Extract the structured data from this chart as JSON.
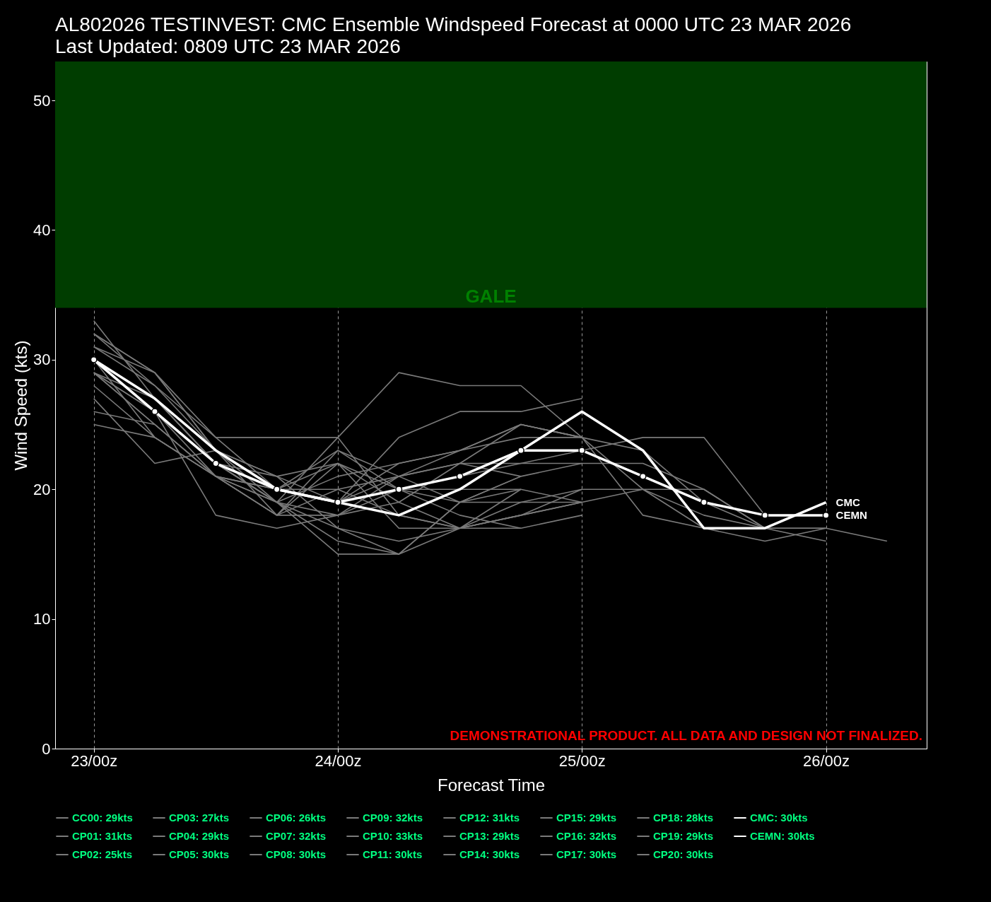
{
  "chart_data": {
    "type": "line",
    "title": "AL802026 TESTINVEST: CMC Ensemble Windspeed Forecast at 0000 UTC 23 MAR 2026",
    "subtitle": "Last Updated: 0809 UTC 23 MAR 2026",
    "xlabel": "Forecast Time",
    "ylabel": "Wind Speed (kts)",
    "x": [
      "2026-03-23T00:00",
      "2026-03-23T06:00",
      "2026-03-23T12:00",
      "2026-03-23T18:00",
      "2026-03-24T00:00",
      "2026-03-24T06:00",
      "2026-03-24T12:00",
      "2026-03-24T18:00",
      "2026-03-25T00:00",
      "2026-03-25T06:00",
      "2026-03-25T12:00",
      "2026-03-25T18:00",
      "2026-03-26T00:00",
      "2026-03-26T06:00"
    ],
    "xlim": [
      "2026-03-22T20:12",
      "2026-03-26T09:54"
    ],
    "xticks": [
      {
        "value": "2026-03-23T00:00",
        "label": "23/00z"
      },
      {
        "value": "2026-03-24T00:00",
        "label": "24/00z"
      },
      {
        "value": "2026-03-25T00:00",
        "label": "25/00z"
      },
      {
        "value": "2026-03-26T00:00",
        "label": "26/00z"
      }
    ],
    "ylim": [
      0,
      53
    ],
    "yticks": [
      0,
      10,
      20,
      30,
      40,
      50
    ],
    "grid": "x",
    "legend": "bottom",
    "line_style": "solid",
    "bands": [
      {
        "axis": "y",
        "from": 34,
        "to": 53,
        "label": "GALE",
        "color": "#003d00"
      }
    ],
    "annotations": [
      {
        "text": "CMC",
        "x": "2026-03-26T00:00",
        "y": 19
      },
      {
        "text": "CEMN",
        "x": "2026-03-26T00:00",
        "y": 18
      },
      "DEMONSTRATIONAL PRODUCT. ALL DATA AND DESIGN NOT FINALIZED."
    ],
    "series": [
      {
        "name": "CC00: 29kts",
        "color": "#7a7a7a",
        "values": [
          29,
          25,
          21,
          20,
          22,
          20,
          19,
          20,
          null,
          null,
          null,
          null,
          null,
          null
        ]
      },
      {
        "name": "CP01: 31kts",
        "color": "#7a7a7a",
        "values": [
          31,
          29,
          23,
          20,
          19,
          22,
          23,
          25,
          24,
          null,
          null,
          null,
          null,
          null
        ]
      },
      {
        "name": "CP02: 25kts",
        "color": "#7a7a7a",
        "values": [
          25,
          24,
          21,
          20,
          20,
          18,
          17,
          18,
          19,
          null,
          null,
          null,
          null,
          null
        ]
      },
      {
        "name": "CP03: 27kts",
        "color": "#7a7a7a",
        "values": [
          27,
          22,
          23,
          20,
          23,
          21,
          19,
          21,
          null,
          null,
          null,
          null,
          null,
          null
        ]
      },
      {
        "name": "CP04: 29kts",
        "color": "#7a7a7a",
        "values": [
          29,
          26,
          21,
          18,
          20,
          21,
          23,
          24,
          24,
          20,
          18,
          17,
          17,
          null
        ]
      },
      {
        "name": "CP05: 30kts",
        "color": "#7a7a7a",
        "values": [
          30,
          26,
          22,
          20,
          19,
          20,
          21,
          22,
          22,
          null,
          null,
          null,
          null,
          null
        ]
      },
      {
        "name": "CP06: 26kts",
        "color": "#7a7a7a",
        "values": [
          26,
          25,
          21,
          19,
          17,
          16,
          17,
          18,
          19,
          null,
          null,
          null,
          null,
          null
        ]
      },
      {
        "name": "CP07: 32kts",
        "color": "#7a7a7a",
        "values": [
          32,
          29,
          24,
          20,
          19,
          24,
          26,
          26,
          27,
          null,
          null,
          null,
          null,
          null
        ]
      },
      {
        "name": "CP08: 30kts",
        "color": "#7a7a7a",
        "values": [
          30,
          27,
          22,
          19,
          18,
          19,
          22,
          25,
          24,
          23,
          19,
          17,
          16,
          null
        ]
      },
      {
        "name": "CP09: 32kts",
        "color": "#7a7a7a",
        "values": [
          32,
          28,
          23,
          21,
          22,
          17,
          17,
          19,
          20,
          20,
          17,
          16,
          17,
          null
        ]
      },
      {
        "name": "CP10: 33kts",
        "color": "#7a7a7a",
        "values": [
          33,
          27,
          23,
          19,
          24,
          29,
          28,
          28,
          24,
          18,
          17,
          null,
          null,
          null
        ]
      },
      {
        "name": "CP11: 30kts",
        "color": "#7a7a7a",
        "values": [
          30,
          24,
          21,
          18,
          22,
          19,
          17,
          17,
          null,
          null,
          null,
          null,
          null,
          null
        ]
      },
      {
        "name": "CP12: 31kts",
        "color": "#7a7a7a",
        "values": [
          31,
          28,
          24,
          24,
          24,
          18,
          17,
          20,
          null,
          null,
          null,
          null,
          null,
          null
        ]
      },
      {
        "name": "CP13: 29kts",
        "color": "#7a7a7a",
        "values": [
          29,
          26,
          22,
          19,
          16,
          15,
          17,
          18,
          20,
          null,
          null,
          null,
          null,
          null
        ]
      },
      {
        "name": "CP14: 30kts",
        "color": "#7a7a7a",
        "values": [
          30,
          27,
          22,
          21,
          17,
          15,
          19,
          21,
          22,
          22,
          20,
          17,
          null,
          null
        ]
      },
      {
        "name": "CP15: 29kts",
        "color": "#7a7a7a",
        "values": [
          29,
          27,
          23,
          21,
          19,
          21,
          22,
          22,
          23,
          24,
          24,
          18,
          18,
          null
        ]
      },
      {
        "name": "CP16: 32kts",
        "color": "#7a7a7a",
        "values": [
          32,
          29,
          23,
          18,
          23,
          20,
          18,
          17,
          18,
          null,
          null,
          null,
          null,
          null
        ]
      },
      {
        "name": "CP17: 30kts",
        "color": "#7a7a7a",
        "values": [
          30,
          26,
          18,
          17,
          18,
          20,
          20,
          20,
          19,
          null,
          null,
          null,
          null,
          null
        ]
      },
      {
        "name": "CP18: 28kts",
        "color": "#7a7a7a",
        "values": [
          28,
          24,
          21,
          18,
          18,
          21,
          22,
          21,
          null,
          null,
          null,
          null,
          null,
          null
        ]
      },
      {
        "name": "CP19: 29kts",
        "color": "#7a7a7a",
        "values": [
          29,
          25,
          21,
          19,
          21,
          22,
          23,
          25,
          24,
          null,
          null,
          null,
          null,
          null
        ]
      },
      {
        "name": "CP20: 30kts",
        "color": "#7a7a7a",
        "values": [
          30,
          27,
          22,
          19,
          15,
          15,
          19,
          19,
          19,
          20,
          20,
          17,
          17,
          16
        ]
      },
      {
        "name": "CMC: 30kts",
        "color": "#ffffff",
        "values": [
          30,
          27,
          23,
          20,
          19,
          18,
          20,
          23,
          26,
          23,
          17,
          17,
          19,
          null
        ]
      },
      {
        "name": "CEMN: 30kts",
        "color": "#ffffff",
        "marker": "circle",
        "values": [
          30,
          26,
          22,
          20,
          19,
          20,
          21,
          23,
          23,
          21,
          19,
          18,
          18,
          null
        ]
      }
    ]
  }
}
